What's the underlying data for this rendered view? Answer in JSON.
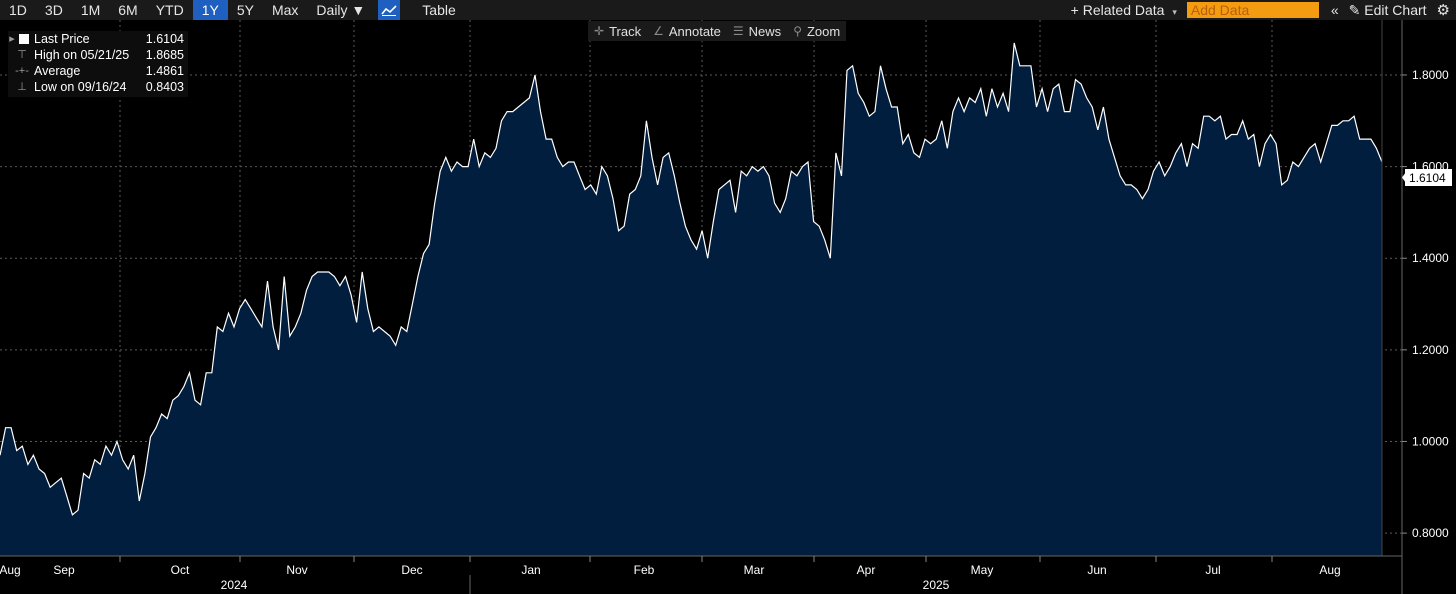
{
  "toolbar": {
    "ranges": [
      "1D",
      "3D",
      "1M",
      "6M",
      "YTD",
      "1Y",
      "5Y",
      "Max"
    ],
    "active_range": "1Y",
    "frequency": "Daily ▼",
    "chart_icon": "line-chart-icon",
    "table_label": "Table",
    "related_data": "+ Related Data",
    "add_data_placeholder": "Add Data",
    "edit_chart": "Edit Chart"
  },
  "chart_tools": {
    "track": "Track",
    "annotate": "Annotate",
    "news": "News",
    "zoom": "Zoom"
  },
  "legend": {
    "last_price_label": "Last Price",
    "last_price_value": "1.6104",
    "high_label": "High on 05/21/25",
    "high_value": "1.8685",
    "average_label": "Average",
    "average_value": "1.4861",
    "low_label": "Low on 09/16/24",
    "low_value": "0.8403"
  },
  "colors": {
    "area_fill": "#021e3e",
    "line": "#ffffff",
    "accent": "#1f5fbf",
    "add_data_bg": "#f39c12"
  },
  "chart_data": {
    "type": "area",
    "y_ticks": [
      "1.8000",
      "1.6000",
      "1.4000",
      "1.2000",
      "1.0000",
      "0.8000"
    ],
    "ylim": [
      0.75,
      1.92
    ],
    "last_value_label": "1.6104",
    "month_labels": [
      "Aug",
      "Sep",
      "Oct",
      "Nov",
      "Dec",
      "Jan",
      "Feb",
      "Mar",
      "Apr",
      "May",
      "Jun",
      "Jul",
      "Aug"
    ],
    "year_labels": [
      "2024",
      "2025"
    ],
    "grid": true,
    "series": [
      {
        "values": [
          0.97,
          1.03,
          1.03,
          0.98,
          0.99,
          0.95,
          0.97,
          0.94,
          0.93,
          0.9,
          0.91,
          0.92,
          0.88,
          0.84,
          0.85,
          0.93,
          0.92,
          0.96,
          0.95,
          0.99,
          0.97,
          1.0,
          0.96,
          0.94,
          0.97,
          0.87,
          0.93,
          1.01,
          1.03,
          1.06,
          1.05,
          1.09,
          1.1,
          1.12,
          1.15,
          1.09,
          1.08,
          1.15,
          1.15,
          1.25,
          1.24,
          1.28,
          1.25,
          1.29,
          1.31,
          1.29,
          1.27,
          1.25,
          1.35,
          1.25,
          1.2,
          1.36,
          1.23,
          1.25,
          1.28,
          1.33,
          1.36,
          1.37,
          1.37,
          1.37,
          1.36,
          1.34,
          1.36,
          1.32,
          1.26,
          1.37,
          1.29,
          1.24,
          1.25,
          1.24,
          1.23,
          1.21,
          1.25,
          1.24,
          1.3,
          1.36,
          1.41,
          1.43,
          1.52,
          1.59,
          1.62,
          1.59,
          1.61,
          1.6,
          1.6,
          1.66,
          1.6,
          1.63,
          1.62,
          1.64,
          1.7,
          1.72,
          1.72,
          1.73,
          1.74,
          1.75,
          1.8,
          1.72,
          1.66,
          1.66,
          1.62,
          1.6,
          1.61,
          1.61,
          1.58,
          1.55,
          1.56,
          1.54,
          1.6,
          1.58,
          1.53,
          1.46,
          1.47,
          1.54,
          1.55,
          1.58,
          1.7,
          1.62,
          1.56,
          1.62,
          1.63,
          1.58,
          1.52,
          1.47,
          1.44,
          1.42,
          1.46,
          1.4,
          1.48,
          1.55,
          1.56,
          1.57,
          1.5,
          1.59,
          1.58,
          1.6,
          1.59,
          1.6,
          1.58,
          1.52,
          1.5,
          1.53,
          1.59,
          1.58,
          1.6,
          1.61,
          1.48,
          1.47,
          1.44,
          1.4,
          1.63,
          1.58,
          1.81,
          1.82,
          1.76,
          1.74,
          1.71,
          1.72,
          1.82,
          1.77,
          1.73,
          1.73,
          1.65,
          1.67,
          1.63,
          1.62,
          1.66,
          1.65,
          1.66,
          1.7,
          1.64,
          1.72,
          1.75,
          1.72,
          1.75,
          1.74,
          1.77,
          1.71,
          1.77,
          1.73,
          1.76,
          1.72,
          1.87,
          1.82,
          1.82,
          1.82,
          1.73,
          1.77,
          1.72,
          1.77,
          1.78,
          1.72,
          1.72,
          1.79,
          1.78,
          1.75,
          1.73,
          1.68,
          1.73,
          1.66,
          1.62,
          1.58,
          1.56,
          1.56,
          1.55,
          1.53,
          1.55,
          1.59,
          1.61,
          1.58,
          1.6,
          1.63,
          1.65,
          1.6,
          1.65,
          1.64,
          1.71,
          1.71,
          1.7,
          1.71,
          1.66,
          1.67,
          1.67,
          1.7,
          1.66,
          1.67,
          1.6,
          1.65,
          1.67,
          1.65,
          1.56,
          1.57,
          1.61,
          1.6,
          1.62,
          1.64,
          1.65,
          1.61,
          1.65,
          1.69,
          1.69,
          1.7,
          1.7,
          1.71,
          1.66,
          1.66,
          1.66,
          1.64,
          1.61
        ]
      }
    ]
  }
}
